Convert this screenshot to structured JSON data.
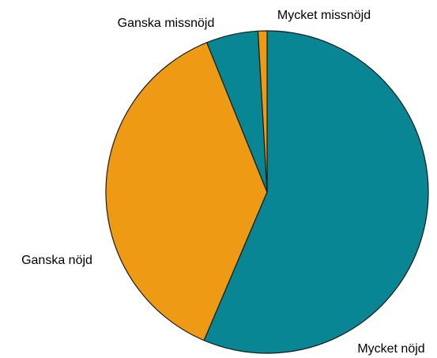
{
  "chart_data": {
    "type": "pie",
    "categories": [
      "Mycket nöjd",
      "Ganska nöjd",
      "Ganska missnöjd",
      "Mycket missnöjd"
    ],
    "values": [
      56.4,
      37.5,
      5.2,
      0.9
    ],
    "colors": [
      "#088694",
      "#ef9a14",
      "#088694",
      "#ef9a14"
    ],
    "start_angle": 0,
    "direction": "clockwise"
  }
}
